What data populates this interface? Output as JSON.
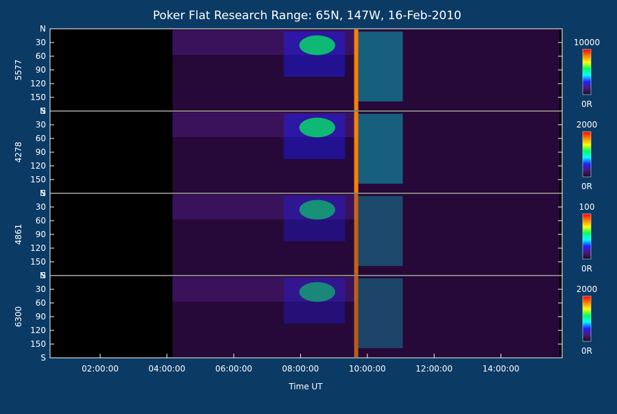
{
  "chart_data": {
    "type": "heatmap",
    "title": "Poker Flat Research Range: 65N, 147W, 16-Feb-2010",
    "xlabel": "Time UT",
    "x_ticks": [
      "02:00:00",
      "04:00:00",
      "06:00:00",
      "08:00:00",
      "10:00:00",
      "12:00:00",
      "14:00:00"
    ],
    "xlim": [
      "00:30:00",
      "15:50:00"
    ],
    "y_ticks": [
      "N",
      "30",
      "60",
      "90",
      "120",
      "150",
      "S"
    ],
    "colorbar_bottom_label": "0R",
    "panels": [
      {
        "ylabel": "5577",
        "colorbar_max": "10000",
        "peak_level": 1.0
      },
      {
        "ylabel": "4278",
        "colorbar_max": "2000",
        "peak_level": 1.0
      },
      {
        "ylabel": "4861",
        "colorbar_max": "100",
        "peak_level": 0.75
      },
      {
        "ylabel": "6300",
        "colorbar_max": "2000",
        "peak_level": 0.7
      }
    ],
    "grid": false,
    "colormap": [
      "#1a0a2a",
      "#4a1a7a",
      "#2020ff",
      "#00ffff",
      "#00ff60",
      "#ffff00",
      "#ff8000",
      "#ff0000"
    ]
  }
}
